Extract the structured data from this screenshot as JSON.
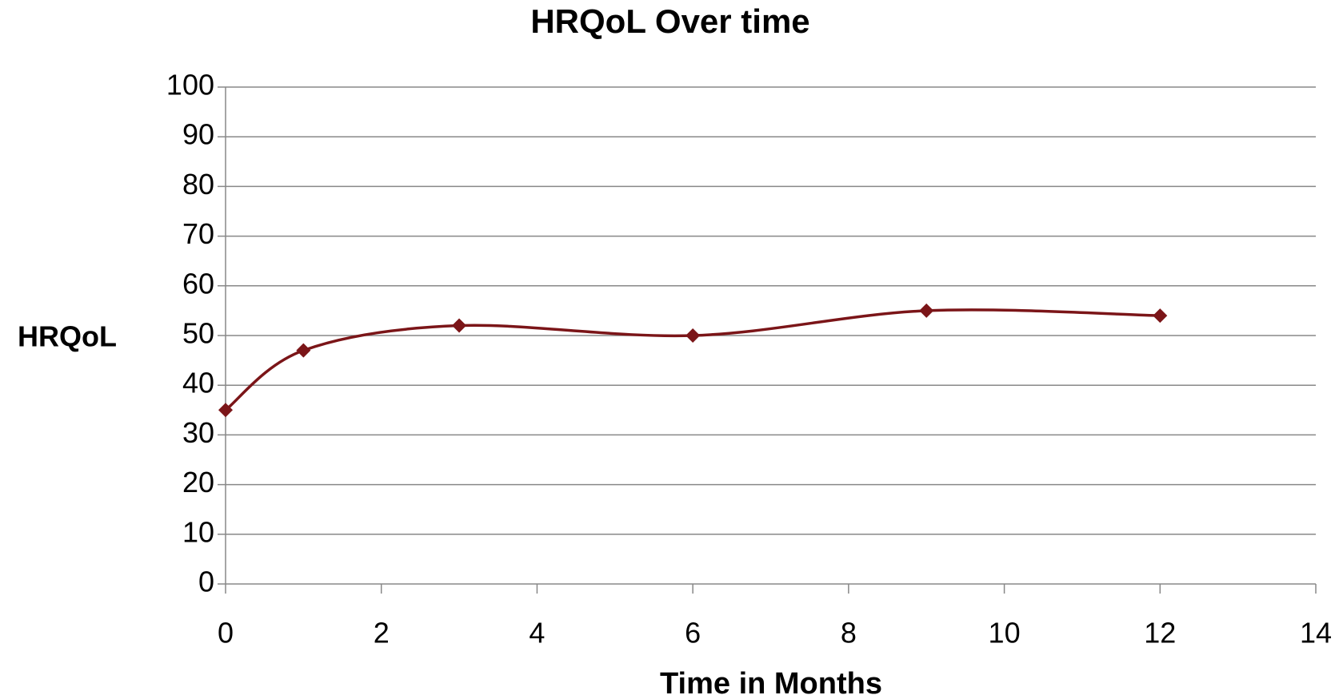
{
  "chart_data": {
    "type": "line",
    "title": "HRQoL Over time",
    "x_label": "Time in Months",
    "y_label": "HRQoL",
    "x": [
      0,
      1,
      3,
      6,
      9,
      12
    ],
    "series": [
      {
        "name": "HRQoL",
        "color": "#7b1518",
        "values": [
          35,
          47,
          52,
          50,
          55,
          54
        ]
      }
    ],
    "xlim": [
      0,
      14
    ],
    "xticks": [
      0,
      2,
      4,
      6,
      8,
      10,
      12,
      14
    ],
    "ylim": [
      0,
      100
    ],
    "yticks": [
      0,
      10,
      20,
      30,
      40,
      50,
      60,
      70,
      80,
      90,
      100
    ],
    "grid": true,
    "smooth": true
  }
}
